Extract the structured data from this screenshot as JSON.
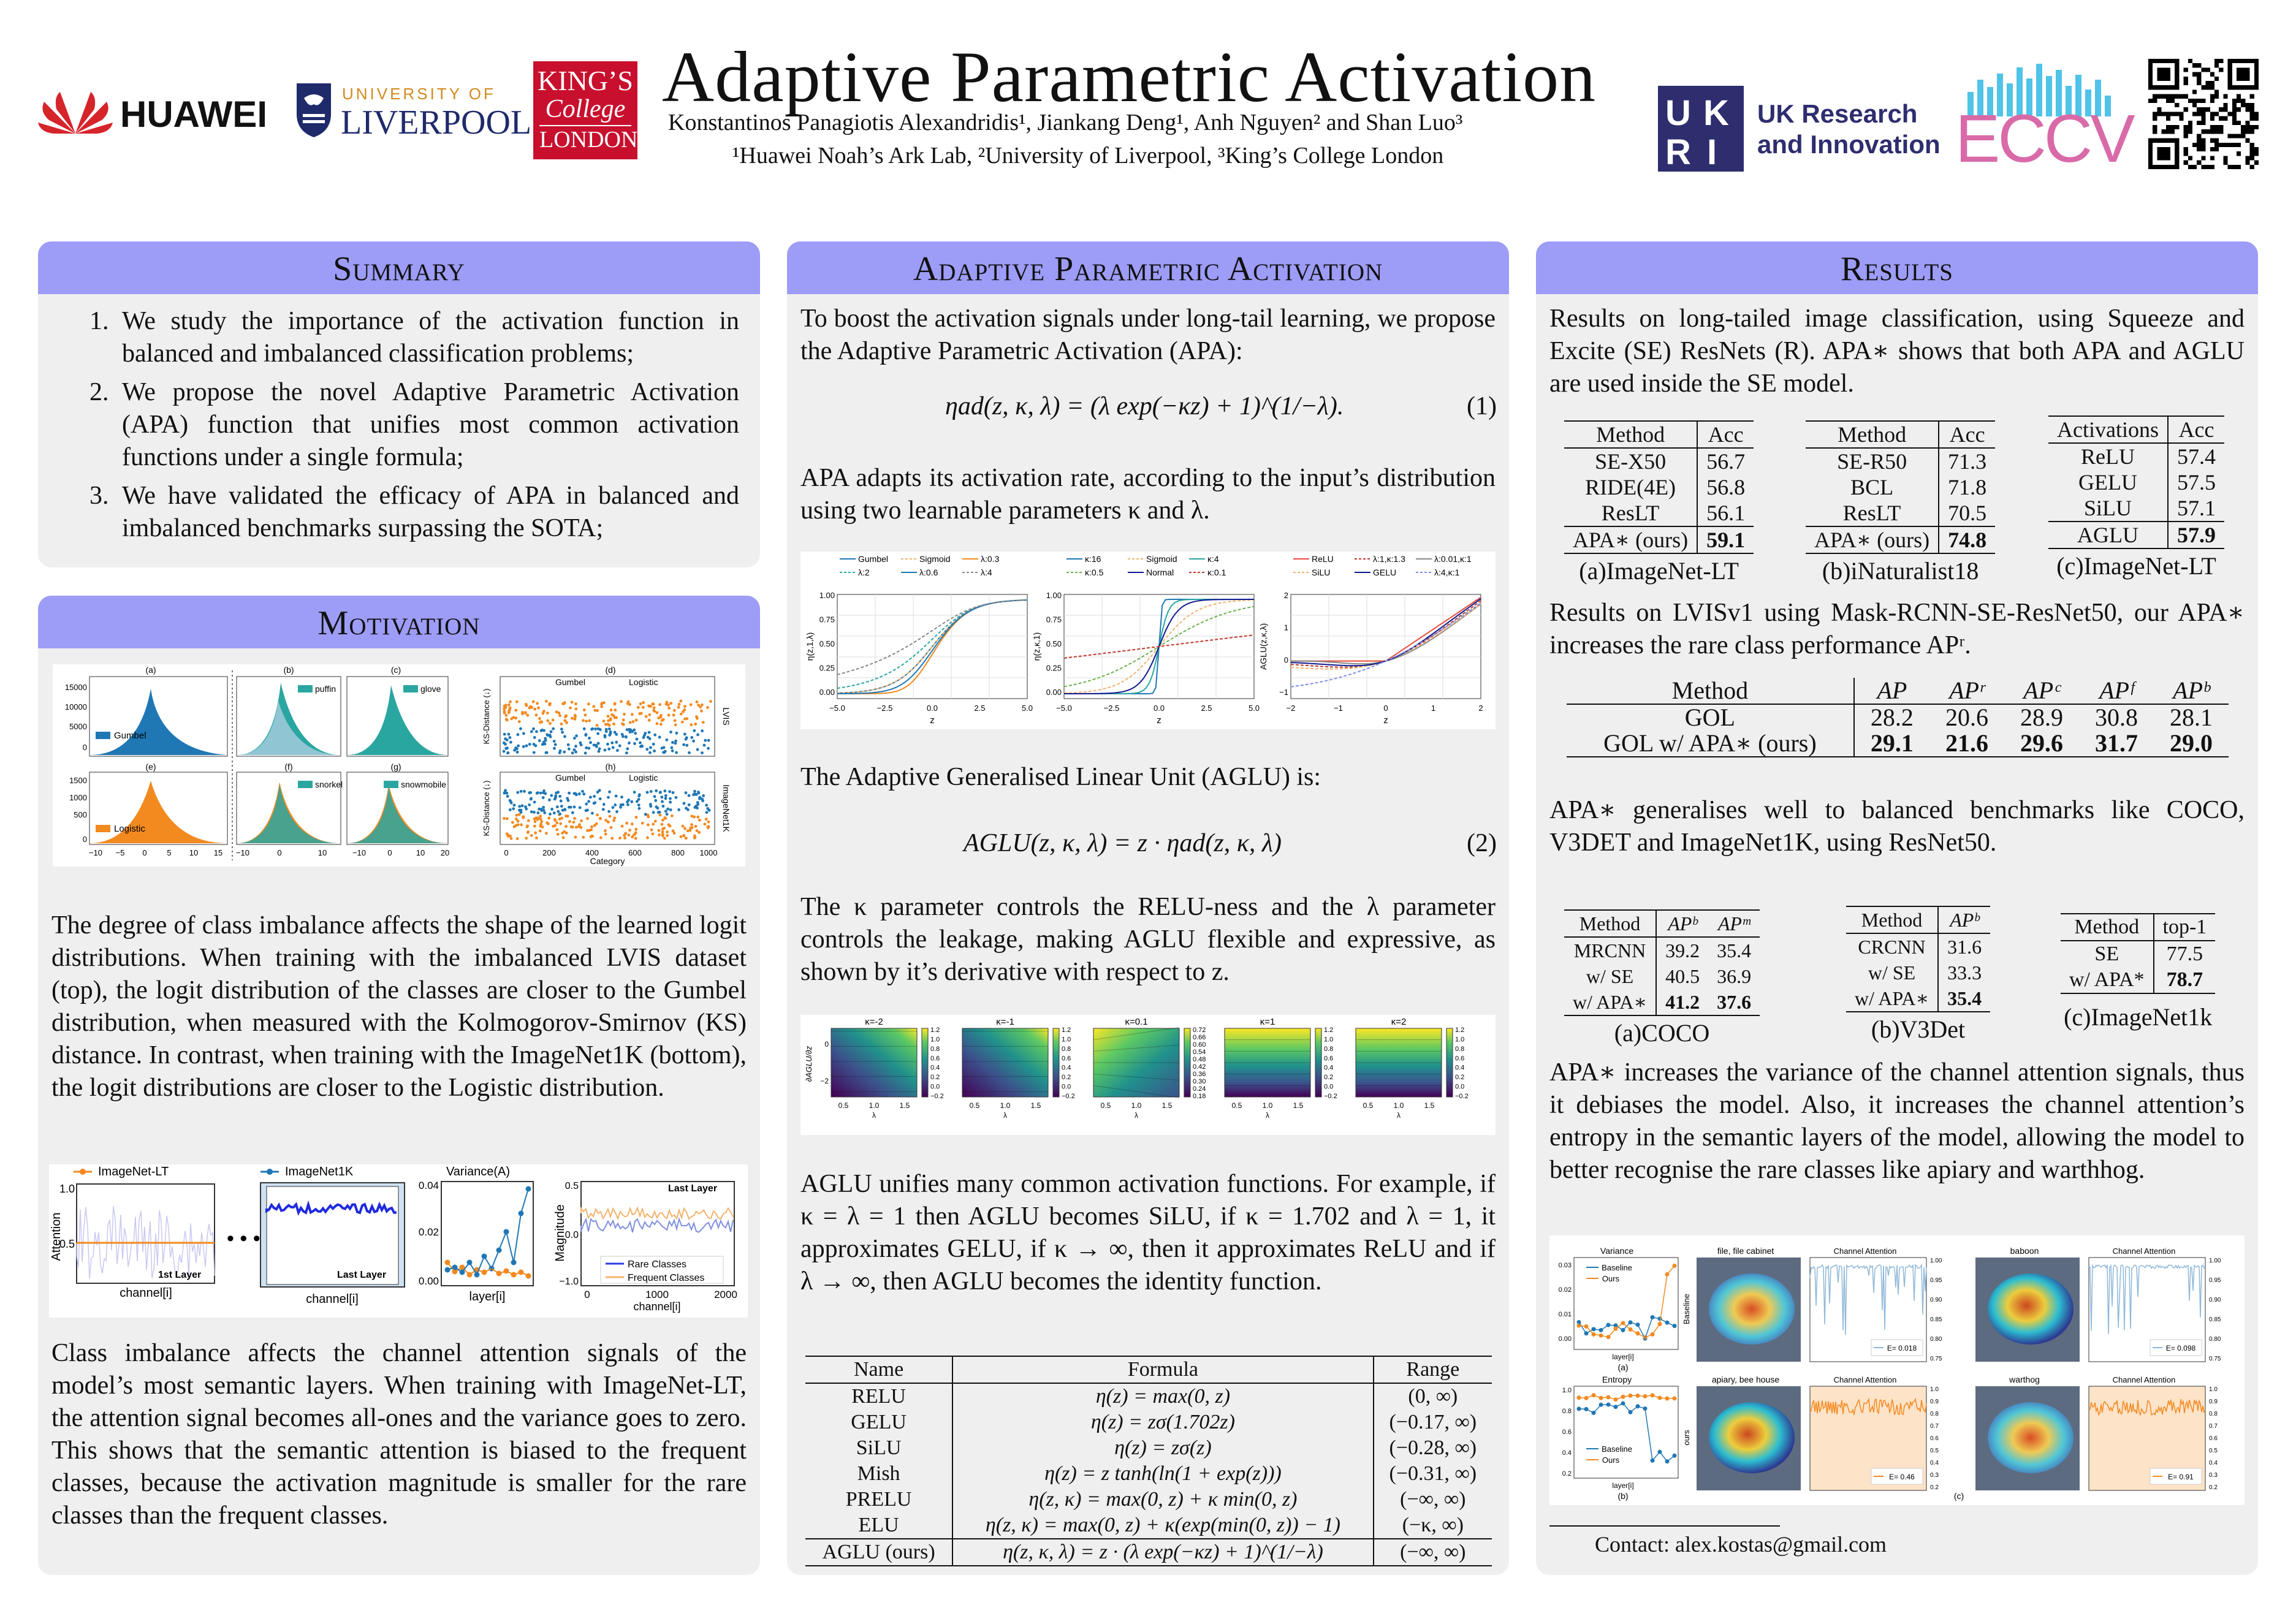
{
  "header": {
    "title": "Adaptive Parametric Activation",
    "authors": "Konstantinos Panagiotis Alexandridis¹, Jiankang Deng¹, Anh Nguyen² and Shan Luo³",
    "affiliations": "¹Huawei Noah’s Ark Lab, ²University of Liverpool, ³King’s College London",
    "logos": {
      "huawei": "HUAWEI",
      "liverpool_top": "UNIVERSITY OF",
      "liverpool_bottom": "LIVERPOOL",
      "kings_1": "KING’S",
      "kings_2": "College",
      "kings_3": "LONDON",
      "ukri_1": "UK Research",
      "ukri_2": "and Innovation",
      "eccv": "ECCV"
    },
    "colors": {
      "huawei_red": "#d6242b",
      "liverpool_blue": "#1f2a6b",
      "kings_red": "#c8102e",
      "ukri_navy": "#2e2d6e",
      "panel_head": "#9d9cf7",
      "orange": "#f28a20",
      "teal": "#2aa6a1",
      "blue": "#1f77b4"
    }
  },
  "summary": {
    "heading": "Summary",
    "items": [
      {
        "num": "1.",
        "text": "We study the importance of the activation function in balanced and imbalanced classification problems;"
      },
      {
        "num": "2.",
        "text": "We propose the novel Adaptive Parametric Activation (APA) function that unifies most common activation functions under a single formula;"
      },
      {
        "num": "3.",
        "text": "We have validated the efficacy of APA in balanced and imbalanced benchmarks surpassing the SOTA;"
      }
    ]
  },
  "motivation": {
    "heading": "Motivation",
    "fig1_labels": {
      "a": "(a)",
      "b": "(b)",
      "c": "(c)",
      "d": "(d)",
      "e": "(e)",
      "f": "(f)",
      "g": "(g)",
      "h": "(h)",
      "gumbel": "Gumbel",
      "logistic": "Logistic",
      "puffin": "puffin",
      "glove": "glove",
      "snorkel": "snorkel",
      "snowmobile": "snowmobile",
      "lvis": "LVIS",
      "imagenet": "ImageNet1K",
      "ks": "KS-Distance (↓)",
      "category": "Category"
    },
    "para1": "The degree of class imbalance affects the shape of the learned logit distributions. When training with the imbalanced LVIS dataset (top), the logit distribution of the classes are closer to the Gumbel distribution, when measured with the Kolmogorov-Smirnov (KS) distance. In contrast, when training with the ImageNet1K (bottom), the logit distributions are closer to the Logistic distribution.",
    "fig2_labels": {
      "imagenet_lt": "ImageNet-LT",
      "imagenet_1k": "ImageNet1K",
      "variance": "Variance(A)",
      "first_layer": "1st Layer",
      "last_layer": "Last Layer",
      "channel": "channel[i]",
      "layer": "layer[i]",
      "attention": "Attention",
      "magnitude": "Magnitude",
      "rare": "Rare Classes",
      "frequent": "Frequent Classes"
    },
    "para2": "Class imbalance affects the channel attention signals of the model’s most semantic layers. When training with ImageNet-LT, the attention signal becomes all-ones and the variance goes to zero. This shows that the semantic attention is biased to the frequent classes, because the activation magnitude is smaller for the rare classes than the frequent classes."
  },
  "apa": {
    "heading": "Adaptive Parametric Activation",
    "intro": "To boost the activation signals under long-tail learning, we propose the Adaptive Parametric Activation (APA):",
    "eq1": "ηad(z, κ, λ) = (λ exp(−κz) + 1)^(1/−λ).",
    "eq1_num": "(1)",
    "para_adapt": "APA adapts its activation rate, according to the input’s distribution using two learnable parameters κ and λ.",
    "plot_legends": {
      "p1": [
        "Gumbel",
        "Sigmoid",
        "λ:0.3",
        "λ:2",
        "λ:0.6",
        "λ:4"
      ],
      "p2": [
        "κ:16",
        "Sigmoid",
        "κ:4",
        "κ:0.5",
        "Normal",
        "κ:0.1"
      ],
      "p3": [
        "ReLU",
        "λ:1,κ:1.3",
        "λ:0.01,κ:1",
        "SiLU",
        "GELU",
        "λ:4,κ:1"
      ]
    },
    "aglu_intro": "The Adaptive Generalised Linear Unit (AGLU) is:",
    "eq2": "AGLU(z, κ, λ) = z · ηad(z, κ, λ)",
    "eq2_num": "(2)",
    "para_kappa": "The κ parameter controls the RELU-ness and the λ parameter controls the leakage, making AGLU flexible and expressive, as shown by it’s derivative with respect to z.",
    "heatmap_titles": [
      "κ=-2",
      "κ=-1",
      "κ=0.1",
      "κ=1",
      "κ=2"
    ],
    "para_unify": "AGLU unifies many common activation functions. For example, if κ = λ = 1 then AGLU becomes SiLU, if κ = 1.702 and λ = 1, it approximates GELU, if κ → ∞, then it approximates ReLU and if λ → ∞, then AGLU becomes the identity function.",
    "table": {
      "headers": [
        "Name",
        "Formula",
        "Range"
      ],
      "rows": [
        [
          "RELU",
          "η(z) = max(0, z)",
          "(0, ∞)"
        ],
        [
          "GELU",
          "η(z) = zσ(1.702z)",
          "(−0.17, ∞)"
        ],
        [
          "SiLU",
          "η(z) = zσ(z)",
          "(−0.28, ∞)"
        ],
        [
          "Mish",
          "η(z) = z tanh(ln(1 + exp(z)))",
          "(−0.31, ∞)"
        ],
        [
          "PRELU",
          "η(z, κ) = max(0, z) + κ min(0, z)",
          "(−∞, ∞)"
        ],
        [
          "ELU",
          "η(z, κ) = max(0, z) + κ(exp(min(0, z)) − 1)",
          "(−κ, ∞)"
        ]
      ],
      "last_row": [
        "AGLU (ours)",
        "η(z, κ, λ) = z · (λ exp(−κz) + 1)^(1/−λ)",
        "(−∞, ∞)"
      ]
    }
  },
  "results": {
    "heading": "Results",
    "intro": "Results on long-tailed image classification, using Squeeze and Excite (SE) ResNets (R). APA∗ shows that both APA and AGLU are used inside the SE model.",
    "t_a": {
      "headers": [
        "Method",
        "Acc"
      ],
      "rows": [
        [
          "SE-X50",
          "56.7"
        ],
        [
          "RIDE(4E)",
          "56.8"
        ],
        [
          "ResLT",
          "56.1"
        ]
      ],
      "last": [
        "APA∗ (ours)",
        "59.1"
      ],
      "caption": "(a)ImageNet-LT"
    },
    "t_b": {
      "headers": [
        "Method",
        "Acc"
      ],
      "rows": [
        [
          "SE-R50",
          "71.3"
        ],
        [
          "BCL",
          "71.8"
        ],
        [
          "ResLT",
          "70.5"
        ]
      ],
      "last": [
        "APA∗ (ours)",
        "74.8"
      ],
      "caption": "(b)iNaturalist18"
    },
    "t_c": {
      "headers": [
        "Activations",
        "Acc"
      ],
      "rows": [
        [
          "ReLU",
          "57.4"
        ],
        [
          "GELU",
          "57.5"
        ],
        [
          "SiLU",
          "57.1"
        ]
      ],
      "last": [
        "AGLU",
        "57.9"
      ],
      "caption": "(c)ImageNet-LT"
    },
    "lvis_intro": "Results on LVISv1 using Mask-RCNN-SE-ResNet50, our APA∗ increases the rare class performance APʳ.",
    "lvis": {
      "headers": [
        "Method",
        "AP",
        "APʳ",
        "APᶜ",
        "APᶠ",
        "APᵇ"
      ],
      "rows": [
        [
          "GOL",
          "28.2",
          "20.6",
          "28.9",
          "30.8",
          "28.1"
        ],
        [
          "GOL w/ APA∗ (ours)",
          "29.1",
          "21.6",
          "29.6",
          "31.7",
          "29.0"
        ]
      ]
    },
    "balanced_intro": "APA∗ generalises well to balanced benchmarks like COCO, V3DET and ImageNet1K, using ResNet50.",
    "t_coco": {
      "headers": [
        "Method",
        "APᵇ",
        "APᵐ"
      ],
      "rows": [
        [
          "MRCNN",
          "39.2",
          "35.4"
        ],
        [
          "w/ SE",
          "40.5",
          "36.9"
        ],
        [
          "w/ APA∗",
          "41.2",
          "37.6"
        ]
      ],
      "caption": "(a)COCO"
    },
    "t_v3det": {
      "headers": [
        "Method",
        "APᵇ"
      ],
      "rows": [
        [
          "CRCNN",
          "31.6"
        ],
        [
          "w/ SE",
          "33.3"
        ],
        [
          "w/ APA∗",
          "35.4"
        ]
      ],
      "caption": "(b)V3Det"
    },
    "t_in1k": {
      "headers": [
        "Method",
        "top-1"
      ],
      "rows": [
        [
          "SE",
          "77.5"
        ],
        [
          "w/ APA*",
          "78.7"
        ]
      ],
      "caption": "(c)ImageNet1k"
    },
    "para_variance": "APA∗ increases the variance of the channel attention signals, thus it debiases the model. Also, it increases the channel attention’s entropy in the semantic layers of the model, allowing the model to better recognise the rare classes like apiary and warthhog.",
    "fig_labels": {
      "variance": "Variance",
      "entropy": "Entropy",
      "baseline": "Baseline",
      "ours": "Ours",
      "layer": "layer[i]",
      "a": "(a)",
      "b": "(b)",
      "c": "(c)",
      "cabinet": "file, file cabinet",
      "apiary": "apiary, bee house",
      "baboon": "baboon",
      "warthog": "warthog",
      "channel_attention": "Channel Attention",
      "e1": "E= 0.018",
      "e2": "E= 0.46",
      "e3": "E= 0.098",
      "e4": "E= 0.91",
      "baseline_side": "Baseline",
      "ours_side": "ours"
    },
    "contact": "Contact: alex.kostas@gmail.com"
  }
}
